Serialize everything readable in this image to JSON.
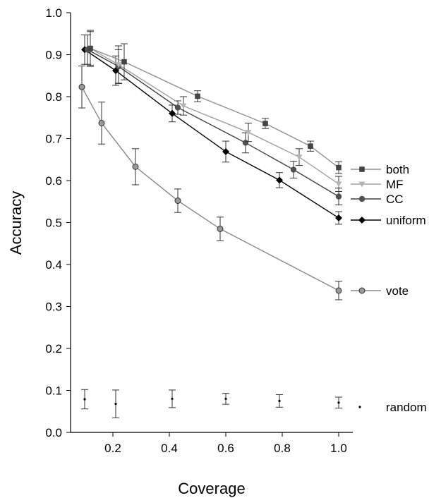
{
  "chart_data": {
    "type": "line",
    "xlabel": "Coverage",
    "ylabel": "Accuracy",
    "xlim": [
      0.05,
      1.05
    ],
    "ylim": [
      0.0,
      1.0
    ],
    "xticks": [
      "0.2",
      "0.4",
      "0.6",
      "0.8",
      "1.0"
    ],
    "yticks": [
      "0.0",
      "0.1",
      "0.2",
      "0.3",
      "0.4",
      "0.5",
      "0.6",
      "0.7",
      "0.8",
      "0.9",
      "1.0"
    ],
    "grid": false,
    "legend_placement": "right",
    "series": [
      {
        "name": "both",
        "color": "#444444",
        "line_color": "#909090",
        "marker": "square",
        "x": [
          0.12,
          0.24,
          0.5,
          0.74,
          0.9,
          1.0
        ],
        "y": [
          0.915,
          0.883,
          0.801,
          0.736,
          0.682,
          0.631
        ],
        "err": [
          0.04,
          0.043,
          0.013,
          0.012,
          0.012,
          0.014
        ]
      },
      {
        "name": "MF",
        "color": "#b4b4b4",
        "line_color": "#a0a0a0",
        "marker": "triangle-down",
        "x": [
          0.12,
          0.22,
          0.45,
          0.68,
          0.86,
          1.0
        ],
        "y": [
          0.915,
          0.876,
          0.778,
          0.715,
          0.656,
          0.592
        ],
        "err": [
          0.043,
          0.045,
          0.022,
          0.022,
          0.02,
          0.018
        ]
      },
      {
        "name": "CC",
        "color": "#505050",
        "line_color": "#404040",
        "marker": "circle",
        "x": [
          0.11,
          0.22,
          0.43,
          0.67,
          0.84,
          1.0
        ],
        "y": [
          0.912,
          0.872,
          0.774,
          0.69,
          0.626,
          0.562
        ],
        "err": [
          0.035,
          0.04,
          0.016,
          0.024,
          0.02,
          0.02
        ]
      },
      {
        "name": "uniform",
        "color": "#000000",
        "line_color": "#000000",
        "marker": "diamond",
        "x": [
          0.1,
          0.21,
          0.41,
          0.6,
          0.79,
          1.0
        ],
        "y": [
          0.912,
          0.862,
          0.76,
          0.669,
          0.601,
          0.511
        ],
        "err": [
          0.035,
          0.035,
          0.02,
          0.025,
          0.018,
          0.015
        ]
      },
      {
        "name": "vote",
        "color": "#999999",
        "line_color": "#888888",
        "marker": "circle-outline",
        "x": [
          0.09,
          0.16,
          0.28,
          0.43,
          0.58,
          1.0
        ],
        "y": [
          0.823,
          0.737,
          0.633,
          0.552,
          0.485,
          0.338
        ],
        "err": [
          0.05,
          0.05,
          0.043,
          0.028,
          0.028,
          0.022
        ]
      },
      {
        "name": "random",
        "color": "#000000",
        "line_color": "none",
        "marker": "dot",
        "x": [
          0.1,
          0.21,
          0.41,
          0.6,
          0.79,
          1.0
        ],
        "y": [
          0.079,
          0.068,
          0.08,
          0.08,
          0.075,
          0.071
        ],
        "err": [
          0.023,
          0.033,
          0.021,
          0.013,
          0.015,
          0.013
        ]
      }
    ]
  }
}
